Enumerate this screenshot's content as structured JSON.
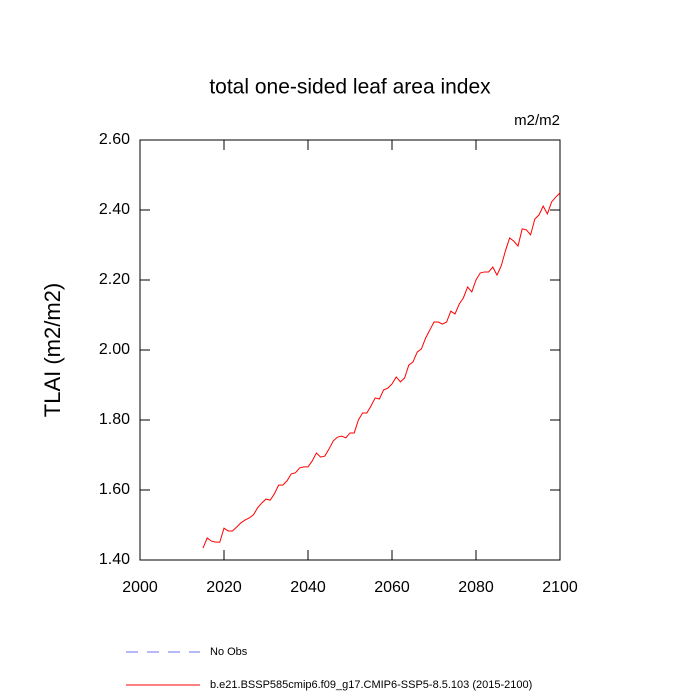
{
  "chart_data": {
    "type": "line",
    "title": "total one-sided leaf area index",
    "units": "m2/m2",
    "ylabel": "TLAI  (m2/m2)",
    "x": [
      2015,
      2016,
      2017,
      2018,
      2019,
      2020,
      2021,
      2022,
      2023,
      2024,
      2025,
      2026,
      2027,
      2028,
      2029,
      2030,
      2031,
      2032,
      2033,
      2034,
      2035,
      2036,
      2037,
      2038,
      2039,
      2040,
      2041,
      2042,
      2043,
      2044,
      2045,
      2046,
      2047,
      2048,
      2049,
      2050,
      2051,
      2052,
      2053,
      2054,
      2055,
      2056,
      2057,
      2058,
      2059,
      2060,
      2061,
      2062,
      2063,
      2064,
      2065,
      2066,
      2067,
      2068,
      2069,
      2070,
      2071,
      2072,
      2073,
      2074,
      2075,
      2076,
      2077,
      2078,
      2079,
      2080,
      2081,
      2082,
      2083,
      2084,
      2085,
      2086,
      2087,
      2088,
      2089,
      2090,
      2091,
      2092,
      2093,
      2094,
      2095,
      2096,
      2097,
      2098,
      2099,
      2100
    ],
    "series": [
      {
        "name": "b.e21.BSSP585cmip6.f09_g17.CMIP6-SSP5-8.5.103 (2015-2100)",
        "color": "#ff0000",
        "values": [
          1.434,
          1.463,
          1.454,
          1.451,
          1.451,
          1.491,
          1.483,
          1.483,
          1.494,
          1.506,
          1.514,
          1.52,
          1.529,
          1.549,
          1.563,
          1.574,
          1.571,
          1.589,
          1.614,
          1.614,
          1.626,
          1.646,
          1.649,
          1.663,
          1.666,
          1.666,
          1.683,
          1.706,
          1.694,
          1.697,
          1.717,
          1.74,
          1.751,
          1.754,
          1.749,
          1.763,
          1.763,
          1.8,
          1.82,
          1.82,
          1.84,
          1.863,
          1.86,
          1.886,
          1.891,
          1.903,
          1.923,
          1.909,
          1.92,
          1.957,
          1.966,
          1.994,
          2.003,
          2.034,
          2.057,
          2.08,
          2.08,
          2.074,
          2.08,
          2.111,
          2.103,
          2.131,
          2.149,
          2.18,
          2.166,
          2.2,
          2.22,
          2.223,
          2.223,
          2.237,
          2.214,
          2.24,
          2.283,
          2.32,
          2.311,
          2.297,
          2.346,
          2.343,
          2.329,
          2.374,
          2.386,
          2.411,
          2.389,
          2.423,
          2.437,
          2.449
        ]
      }
    ],
    "obs_legend": {
      "name": "No Obs",
      "color": "#7070ee",
      "style": "dashed"
    },
    "xlim": [
      2000,
      2100
    ],
    "xticks": [
      2000,
      2020,
      2040,
      2060,
      2080,
      2100
    ],
    "ylim": [
      1.4,
      2.6
    ],
    "yticks": [
      {
        "value": 1.4,
        "label": "1.40"
      },
      {
        "value": 1.6,
        "label": "1.60"
      },
      {
        "value": 1.8,
        "label": "1.80"
      },
      {
        "value": 2.0,
        "label": "2.00"
      },
      {
        "value": 2.2,
        "label": "2.20"
      },
      {
        "value": 2.4,
        "label": "2.40"
      },
      {
        "value": 2.6,
        "label": "2.60"
      }
    ]
  }
}
